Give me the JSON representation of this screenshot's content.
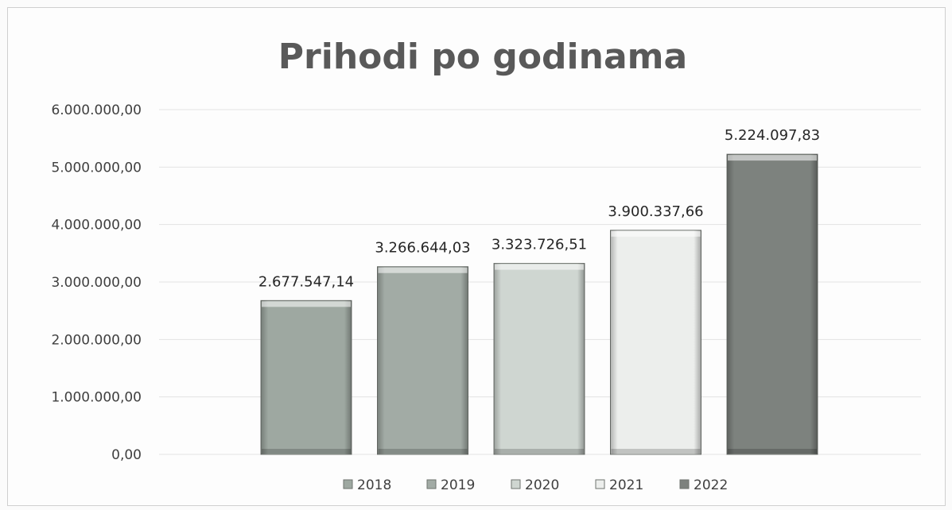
{
  "chart_data": {
    "type": "bar",
    "title": "Prihodi po godinama",
    "categories": [
      "2018",
      "2019",
      "2020",
      "2021",
      "2022"
    ],
    "values": [
      2677547.14,
      3266644.03,
      3323726.51,
      3900337.66,
      5224097.83
    ],
    "value_labels": [
      "2.677.547,14",
      "3.266.644,03",
      "3.323.726,51",
      "3.900.337,66",
      "5.224.097,83"
    ],
    "xlabel": "",
    "ylabel": "",
    "ylim": [
      0,
      6000000
    ],
    "y_ticks": [
      0,
      1000000,
      2000000,
      3000000,
      4000000,
      5000000,
      6000000
    ],
    "y_tick_labels": [
      "0,00",
      "1.000.000,00",
      "2.000.000,00",
      "3.000.000,00",
      "4.000.000,00",
      "5.000.000,00",
      "6.000.000,00"
    ],
    "legend_entries": [
      "2018",
      "2019",
      "2020",
      "2021",
      "2022"
    ],
    "legend_position": "bottom",
    "grid": true,
    "colors": [
      "#9ea8a1",
      "#a2aba5",
      "#cfd6d1",
      "#eceeec",
      "#7d827e"
    ]
  }
}
